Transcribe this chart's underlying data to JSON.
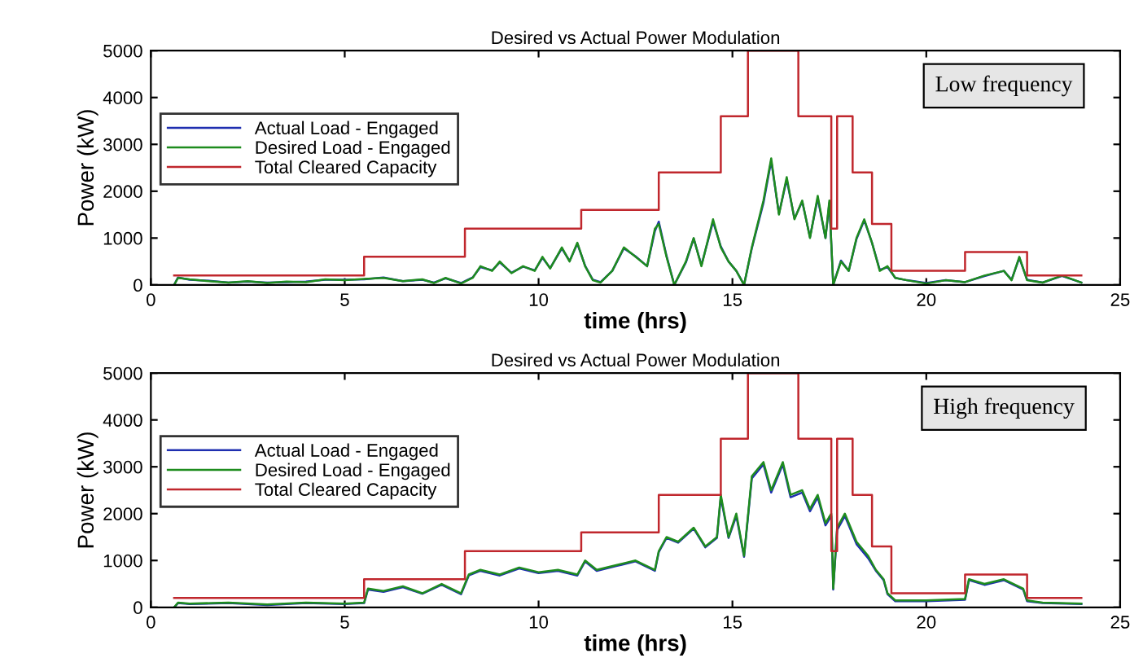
{
  "chart_data": [
    {
      "type": "line",
      "title": "Desired vs Actual Power Modulation",
      "xlabel": "time (hrs)",
      "ylabel": "Power (kW)",
      "xlim": [
        0,
        25
      ],
      "ylim": [
        0,
        5000
      ],
      "xticks": [
        0,
        5,
        10,
        15,
        20,
        25
      ],
      "yticks": [
        0,
        1000,
        2000,
        3000,
        4000,
        5000
      ],
      "legend": "left",
      "grid": false,
      "annotations": [
        "Low frequency"
      ],
      "series": [
        {
          "name": "Actual Load - Engaged",
          "color": "#1f2fb0",
          "x": [
            0.6,
            0.7,
            1.0,
            1.5,
            2,
            2.5,
            3,
            3.5,
            4,
            4.5,
            5,
            5.5,
            6,
            6.5,
            7,
            7.3,
            7.6,
            8.0,
            8.3,
            8.5,
            8.8,
            9.0,
            9.3,
            9.6,
            9.9,
            10.1,
            10.3,
            10.6,
            10.8,
            11.0,
            11.2,
            11.4,
            11.6,
            11.9,
            12.2,
            12.5,
            12.8,
            13.0,
            13.1,
            13.3,
            13.5,
            13.8,
            14.0,
            14.2,
            14.5,
            14.7,
            14.9,
            15.1,
            15.3,
            15.5,
            15.8,
            16.0,
            16.2,
            16.4,
            16.6,
            16.8,
            17.0,
            17.2,
            17.4,
            17.5,
            17.6,
            17.8,
            18.0,
            18.2,
            18.4,
            18.6,
            18.8,
            19.0,
            19.2,
            19.5,
            20,
            20.5,
            21,
            21.5,
            22,
            22.2,
            22.4,
            22.6,
            23,
            23.5,
            24
          ],
          "values": [
            0,
            160,
            110,
            90,
            50,
            70,
            50,
            60,
            70,
            110,
            110,
            120,
            160,
            80,
            110,
            50,
            140,
            40,
            160,
            380,
            310,
            480,
            260,
            390,
            310,
            580,
            360,
            780,
            510,
            880,
            410,
            110,
            60,
            300,
            780,
            610,
            400,
            1150,
            1350,
            620,
            0,
            480,
            990,
            420,
            1350,
            820,
            500,
            300,
            0,
            780,
            1750,
            2650,
            1520,
            2250,
            1420,
            1780,
            1020,
            1850,
            1000,
            1750,
            0,
            520,
            300,
            980,
            1380,
            900,
            320,
            380,
            150,
            100,
            40,
            100,
            60,
            190,
            300,
            110,
            580,
            110,
            50,
            190,
            50
          ]
        },
        {
          "name": "Desired Load - Engaged",
          "color": "#1e8c1e",
          "x": [
            0.6,
            0.7,
            1.0,
            1.5,
            2,
            2.5,
            3,
            3.5,
            4,
            4.5,
            5,
            5.5,
            6,
            6.5,
            7,
            7.3,
            7.6,
            8.0,
            8.3,
            8.5,
            8.8,
            9.0,
            9.3,
            9.6,
            9.9,
            10.1,
            10.3,
            10.6,
            10.8,
            11.0,
            11.2,
            11.4,
            11.6,
            11.9,
            12.2,
            12.5,
            12.8,
            13.0,
            13.1,
            13.3,
            13.5,
            13.8,
            14.0,
            14.2,
            14.5,
            14.7,
            14.9,
            15.1,
            15.3,
            15.5,
            15.8,
            16.0,
            16.2,
            16.4,
            16.6,
            16.8,
            17.0,
            17.2,
            17.4,
            17.5,
            17.6,
            17.8,
            18.0,
            18.2,
            18.4,
            18.6,
            18.8,
            19.0,
            19.2,
            19.5,
            20,
            20.5,
            21,
            21.5,
            22,
            22.2,
            22.4,
            22.6,
            23,
            23.5,
            24
          ],
          "values": [
            0,
            150,
            120,
            80,
            50,
            80,
            40,
            70,
            60,
            120,
            100,
            130,
            150,
            80,
            120,
            40,
            150,
            30,
            150,
            400,
            300,
            500,
            250,
            400,
            300,
            600,
            350,
            800,
            500,
            900,
            400,
            100,
            50,
            300,
            800,
            600,
            400,
            1200,
            1300,
            600,
            0,
            500,
            1000,
            400,
            1400,
            800,
            500,
            300,
            0,
            800,
            1800,
            2700,
            1500,
            2300,
            1400,
            1800,
            1000,
            1900,
            1000,
            1800,
            0,
            500,
            300,
            1000,
            1400,
            900,
            300,
            400,
            150,
            100,
            30,
            100,
            60,
            200,
            300,
            100,
            600,
            100,
            50,
            200,
            50
          ]
        },
        {
          "name": "Total Cleared Capacity",
          "color": "#c0272d",
          "type": "step",
          "x": [
            0.6,
            5.5,
            8.1,
            11.1,
            13.1,
            14.7,
            15.4,
            16.7,
            17.55,
            17.7,
            18.1,
            18.6,
            19.1,
            21.0,
            22.6,
            24.0
          ],
          "values": [
            200,
            600,
            1200,
            1600,
            2400,
            3600,
            5000,
            3600,
            1200,
            3600,
            2400,
            1300,
            300,
            700,
            200,
            200
          ]
        }
      ]
    },
    {
      "type": "line",
      "title": "Desired vs Actual Power Modulation",
      "xlabel": "time (hrs)",
      "ylabel": "Power (kW)",
      "xlim": [
        0,
        25
      ],
      "ylim": [
        0,
        5000
      ],
      "xticks": [
        0,
        5,
        10,
        15,
        20,
        25
      ],
      "yticks": [
        0,
        1000,
        2000,
        3000,
        4000,
        5000
      ],
      "legend": "left",
      "grid": false,
      "annotations": [
        "High frequency"
      ],
      "series": [
        {
          "name": "Actual Load - Engaged",
          "color": "#1f2fb0",
          "x": [
            0.6,
            0.7,
            1,
            2,
            3,
            4,
            5,
            5.5,
            5.6,
            6,
            6.5,
            7,
            7.5,
            8,
            8.2,
            8.5,
            9,
            9.5,
            10,
            10.5,
            11,
            11.2,
            11.5,
            12,
            12.5,
            13,
            13.1,
            13.3,
            13.6,
            14,
            14.3,
            14.6,
            14.7,
            14.9,
            15.1,
            15.3,
            15.5,
            15.8,
            16.0,
            16.3,
            16.5,
            16.8,
            17.0,
            17.2,
            17.4,
            17.55,
            17.6,
            17.7,
            17.9,
            18.2,
            18.5,
            18.7,
            18.9,
            19.0,
            19.2,
            20,
            21,
            21.1,
            21.5,
            22,
            22.5,
            22.6,
            23,
            24
          ],
          "values": [
            0,
            90,
            70,
            90,
            50,
            90,
            70,
            90,
            380,
            330,
            430,
            290,
            480,
            280,
            680,
            780,
            680,
            830,
            730,
            780,
            680,
            980,
            780,
            880,
            980,
            780,
            1180,
            1480,
            1380,
            1680,
            1280,
            1480,
            2350,
            1480,
            1950,
            1080,
            2750,
            3050,
            2450,
            3050,
            2350,
            2450,
            2050,
            2350,
            1750,
            1950,
            380,
            1650,
            1950,
            1350,
            1050,
            780,
            580,
            280,
            130,
            130,
            160,
            580,
            480,
            580,
            380,
            130,
            90,
            70
          ]
        },
        {
          "name": "Desired Load - Engaged",
          "color": "#1e8c1e",
          "x": [
            0.6,
            0.7,
            1,
            2,
            3,
            4,
            5,
            5.5,
            5.6,
            6,
            6.5,
            7,
            7.5,
            8,
            8.2,
            8.5,
            9,
            9.5,
            10,
            10.5,
            11,
            11.2,
            11.5,
            12,
            12.5,
            13,
            13.1,
            13.3,
            13.6,
            14,
            14.3,
            14.6,
            14.7,
            14.9,
            15.1,
            15.3,
            15.5,
            15.8,
            16.0,
            16.3,
            16.5,
            16.8,
            17.0,
            17.2,
            17.4,
            17.55,
            17.6,
            17.7,
            17.9,
            18.2,
            18.5,
            18.7,
            18.9,
            19.0,
            19.2,
            20,
            21,
            21.1,
            21.5,
            22,
            22.5,
            22.6,
            23,
            24
          ],
          "values": [
            0,
            100,
            80,
            100,
            60,
            100,
            80,
            100,
            400,
            350,
            450,
            300,
            500,
            300,
            700,
            800,
            700,
            850,
            750,
            800,
            700,
            1000,
            800,
            900,
            1000,
            800,
            1200,
            1500,
            1400,
            1700,
            1300,
            1500,
            2400,
            1500,
            2000,
            1100,
            2800,
            3100,
            2500,
            3100,
            2400,
            2500,
            2100,
            2400,
            1800,
            2000,
            400,
            1700,
            2000,
            1400,
            1100,
            800,
            600,
            300,
            150,
            150,
            180,
            600,
            500,
            600,
            400,
            150,
            100,
            80
          ]
        },
        {
          "name": "Total Cleared Capacity",
          "color": "#c0272d",
          "type": "step",
          "x": [
            0.6,
            5.5,
            8.1,
            11.1,
            13.1,
            14.7,
            15.4,
            16.7,
            17.55,
            17.7,
            18.1,
            18.6,
            19.1,
            21.0,
            22.6,
            24.0
          ],
          "values": [
            200,
            600,
            1200,
            1600,
            2400,
            3600,
            5000,
            3600,
            1200,
            3600,
            2400,
            1300,
            300,
            700,
            200,
            200
          ]
        }
      ]
    }
  ]
}
